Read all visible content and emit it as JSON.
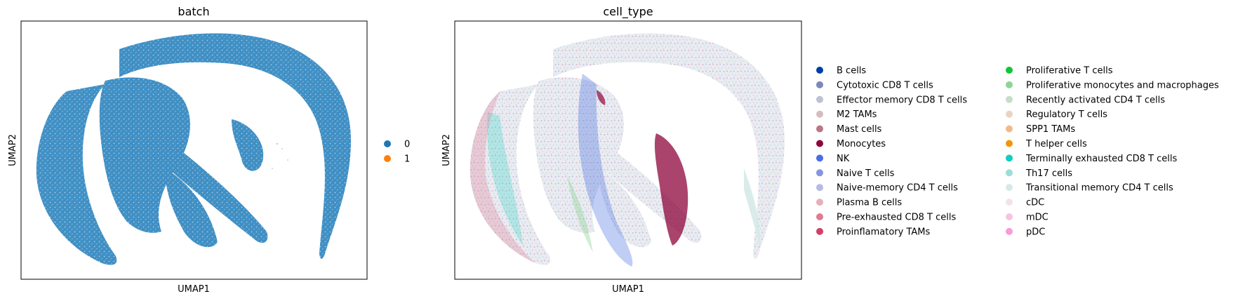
{
  "chart_data": [
    {
      "type": "scatter",
      "title": "batch",
      "xlabel": "UMAP1",
      "ylabel": "UMAP2",
      "grid": false,
      "ticks": false,
      "legend_placement": "right-outside",
      "legend": [
        {
          "label": "0",
          "color": "#1f77b4"
        },
        {
          "label": "1",
          "color": "#ff7f0e"
        }
      ]
    },
    {
      "type": "scatter",
      "title": "cell_type",
      "xlabel": "UMAP1",
      "ylabel": "UMAP2",
      "grid": false,
      "ticks": false,
      "legend_placement": "right-outside",
      "legend_columns": 2,
      "legend": [
        {
          "label": "B cells",
          "color": "#023fa5"
        },
        {
          "label": "Cytotoxic CD8 T cells",
          "color": "#7d87b9"
        },
        {
          "label": "Effector memory CD8 T cells",
          "color": "#bec1d4"
        },
        {
          "label": "M2 TAMs",
          "color": "#d6bcc0"
        },
        {
          "label": "Mast cells",
          "color": "#bb7784"
        },
        {
          "label": "Monocytes",
          "color": "#8e063b"
        },
        {
          "label": "NK",
          "color": "#4a6fe3"
        },
        {
          "label": "Naive T cells",
          "color": "#8595e1"
        },
        {
          "label": "Naive-memory CD4 T cells",
          "color": "#b5bbe3"
        },
        {
          "label": "Plasma B cells",
          "color": "#e6afb9"
        },
        {
          "label": "Pre-exhausted CD8 T cells",
          "color": "#e07b91"
        },
        {
          "label": "Proinflamatory TAMs",
          "color": "#d33f6a"
        },
        {
          "label": "Proliferative T cells",
          "color": "#11c638"
        },
        {
          "label": "Proliferative monocytes and macrophages",
          "color": "#8dd593"
        },
        {
          "label": "Recently activated CD4 T cells",
          "color": "#c6dec7"
        },
        {
          "label": "Regulatory T cells",
          "color": "#ead3c6"
        },
        {
          "label": "SPP1 TAMs",
          "color": "#f0b98d"
        },
        {
          "label": "T helper cells",
          "color": "#ef9708"
        },
        {
          "label": "Terminally exhausted CD8 T cells",
          "color": "#0fcfc0"
        },
        {
          "label": "Th17 cells",
          "color": "#9cded6"
        },
        {
          "label": "Transitional memory CD4 T cells",
          "color": "#d5eae7"
        },
        {
          "label": "cDC",
          "color": "#f3e1eb"
        },
        {
          "label": "mDC",
          "color": "#f6c4e1"
        },
        {
          "label": "pDC",
          "color": "#f79cd4"
        }
      ]
    }
  ]
}
